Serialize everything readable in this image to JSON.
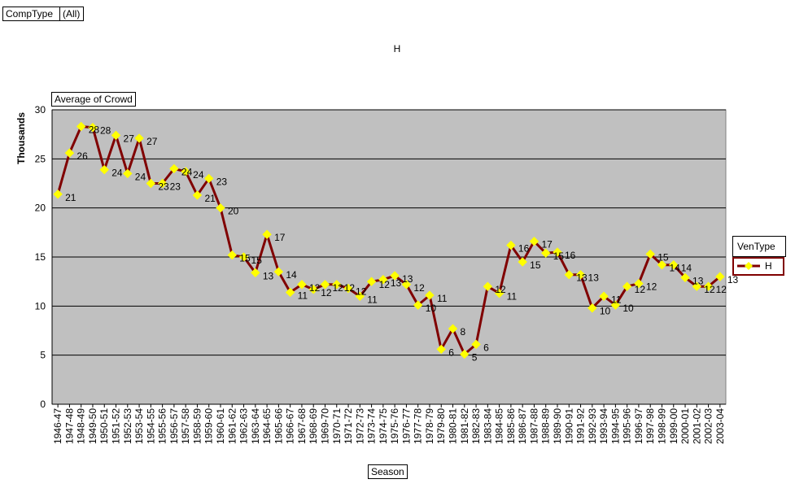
{
  "filter": {
    "field": "CompType",
    "value": "(All)"
  },
  "data_field": "Average of Crowd",
  "legend": {
    "title": "VenType",
    "series": "H"
  },
  "colors": {
    "plot_bg": "#c0c0c0",
    "line": "#800000",
    "marker": "#ffff00",
    "grid": "#000000"
  },
  "chart_data": {
    "type": "line",
    "title": "H",
    "xlabel": "Season",
    "ylabel": "Thousands",
    "ylim": [
      0,
      30
    ],
    "yticks": [
      0,
      5,
      10,
      15,
      20,
      25,
      30
    ],
    "grid": true,
    "legend_position": "right",
    "categories": [
      "1946-47",
      "1947-48",
      "1948-49",
      "1949-50",
      "1950-51",
      "1951-52",
      "1952-53",
      "1953-54",
      "1954-55",
      "1955-56",
      "1956-57",
      "1957-58",
      "1958-59",
      "1959-60",
      "1960-61",
      "1961-62",
      "1962-63",
      "1963-64",
      "1964-65",
      "1965-66",
      "1966-67",
      "1967-68",
      "1968-69",
      "1969-70",
      "1970-71",
      "1971-72",
      "1972-73",
      "1973-74",
      "1974-75",
      "1975-76",
      "1976-77",
      "1977-78",
      "1978-79",
      "1979-80",
      "1980-81",
      "1981-82",
      "1982-83",
      "1983-84",
      "1984-85",
      "1985-86",
      "1986-87",
      "1987-88",
      "1988-89",
      "1989-90",
      "1990-91",
      "1991-92",
      "1992-93",
      "1993-94",
      "1994-95",
      "1995-96",
      "1996-97",
      "1997-98",
      "1998-99",
      "1999-00",
      "2000-01",
      "2001-02",
      "2002-03",
      "2003-04"
    ],
    "series": [
      {
        "name": "H",
        "values": [
          21.4,
          25.6,
          28.3,
          28.2,
          23.9,
          27.4,
          23.5,
          27.1,
          22.5,
          22.5,
          24.0,
          23.7,
          21.3,
          23.0,
          20.0,
          15.2,
          15.0,
          13.4,
          17.3,
          13.5,
          11.4,
          12.2,
          11.7,
          12.2,
          12.2,
          11.8,
          11.0,
          12.5,
          12.7,
          13.1,
          12.2,
          10.1,
          11.1,
          5.6,
          7.7,
          5.1,
          6.1,
          12.0,
          11.3,
          16.2,
          14.5,
          16.6,
          15.4,
          15.5,
          13.2,
          13.2,
          9.8,
          11.0,
          10.1,
          12.0,
          12.3,
          15.3,
          14.2,
          14.2,
          12.9,
          12.0,
          12.0,
          13.0
        ],
        "labels": [
          "21",
          "26",
          "28",
          "28",
          "24",
          "27",
          "24",
          "27",
          "23",
          "23",
          "24",
          "24",
          "21",
          "23",
          "20",
          "15",
          "15",
          "13",
          "17",
          "14",
          "11",
          "12",
          "12",
          "12",
          "12",
          "12",
          "11",
          "12",
          "13",
          "13",
          "12",
          "10",
          "11",
          "6",
          "8",
          "5",
          "6",
          "12",
          "11",
          "16",
          "15",
          "17",
          "15",
          "16",
          "13",
          "13",
          "10",
          "11",
          "10",
          "12",
          "12",
          "15",
          "14",
          "14",
          "13",
          "12",
          "12",
          "13"
        ]
      }
    ]
  }
}
